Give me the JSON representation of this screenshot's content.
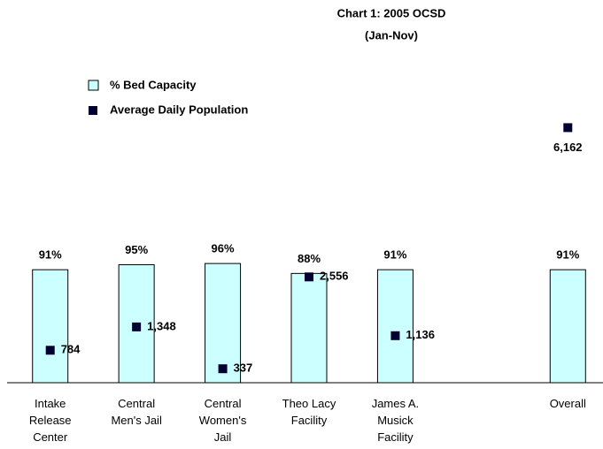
{
  "chart_data": {
    "type": "bar",
    "title": "Chart 1: 2005 OCSD",
    "subtitle": "(Jan-Nov)",
    "categories": [
      "Intake Release Center",
      "Central Men's Jail",
      "Central Women's Jail",
      "Theo Lacy Facility",
      "James A. Musick Facility",
      null,
      "Overall"
    ],
    "series": [
      {
        "name": "% Bed Capacity",
        "type": "bar",
        "color": "#ccffff",
        "values": [
          91,
          95,
          96,
          88,
          91,
          null,
          91
        ],
        "value_labels": [
          "91%",
          "95%",
          "96%",
          "88%",
          "91%",
          null,
          "91%"
        ]
      },
      {
        "name": "Average Daily Population",
        "type": "scatter",
        "axis": "y2",
        "color": "#000033",
        "values": [
          784,
          1348,
          337,
          2556,
          1136,
          null,
          6162
        ],
        "value_labels": [
          "784",
          "1,348",
          "337",
          "2,556",
          "1,136",
          null,
          "6,162"
        ]
      }
    ],
    "ylim": [
      0,
      200
    ],
    "y2lim": [
      0,
      6000
    ]
  }
}
